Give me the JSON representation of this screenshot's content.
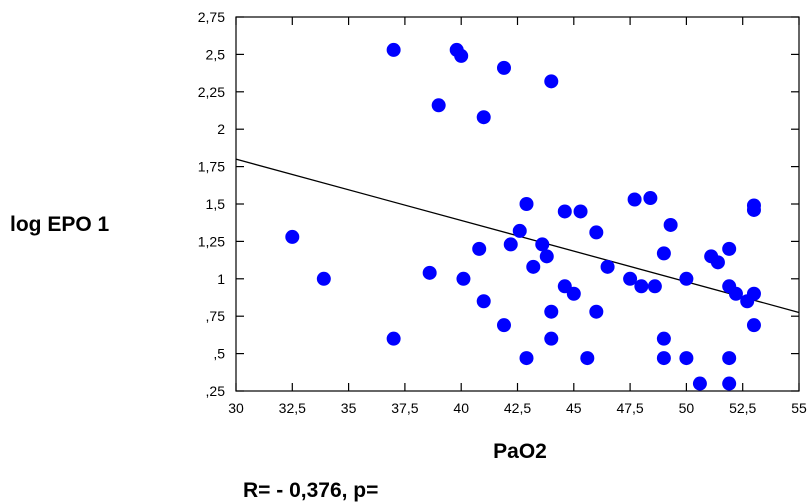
{
  "chart_data": {
    "type": "scatter",
    "xlabel": "PaO2",
    "ylabel": "log EPO 1",
    "annotation": "R= - 0,376, p=",
    "xlim": [
      30,
      55
    ],
    "ylim": [
      0.25,
      2.75
    ],
    "x_ticks": [
      "30",
      "32,5",
      "35",
      "37,5",
      "40",
      "42,5",
      "45",
      "47,5",
      "50",
      "52,5",
      "55"
    ],
    "y_ticks": [
      ",25",
      ",5",
      ",75",
      "1",
      "1,25",
      "1,5",
      "1,75",
      "2",
      "2,25",
      "2,5",
      "2,75"
    ],
    "grid": false,
    "marker_color": "#0000ff",
    "trendline": {
      "x": [
        30,
        55
      ],
      "y": [
        1.8,
        0.775
      ]
    },
    "points": [
      [
        32.5,
        1.28
      ],
      [
        33.9,
        1.0
      ],
      [
        37.0,
        2.53
      ],
      [
        37.0,
        0.6
      ],
      [
        38.6,
        1.04
      ],
      [
        39.0,
        2.16
      ],
      [
        39.8,
        2.53
      ],
      [
        40.0,
        2.49
      ],
      [
        40.1,
        1.0
      ],
      [
        40.8,
        1.2
      ],
      [
        41.0,
        2.08
      ],
      [
        41.0,
        0.85
      ],
      [
        41.9,
        2.41
      ],
      [
        41.9,
        0.69
      ],
      [
        42.2,
        1.23
      ],
      [
        42.6,
        1.32
      ],
      [
        42.9,
        1.5
      ],
      [
        42.9,
        0.47
      ],
      [
        43.2,
        1.08
      ],
      [
        43.6,
        1.23
      ],
      [
        43.8,
        1.15
      ],
      [
        44.0,
        2.32
      ],
      [
        44.0,
        0.78
      ],
      [
        44.0,
        0.6
      ],
      [
        44.6,
        1.45
      ],
      [
        44.6,
        0.95
      ],
      [
        45.0,
        0.9
      ],
      [
        45.3,
        1.45
      ],
      [
        45.6,
        0.47
      ],
      [
        46.0,
        1.31
      ],
      [
        46.0,
        0.78
      ],
      [
        46.5,
        1.08
      ],
      [
        47.5,
        1.0
      ],
      [
        47.7,
        1.53
      ],
      [
        48.0,
        0.95
      ],
      [
        48.4,
        1.54
      ],
      [
        48.6,
        0.95
      ],
      [
        49.0,
        1.17
      ],
      [
        49.0,
        0.6
      ],
      [
        49.0,
        0.47
      ],
      [
        49.3,
        1.36
      ],
      [
        50.0,
        1.0
      ],
      [
        50.0,
        0.47
      ],
      [
        50.6,
        0.3
      ],
      [
        51.1,
        1.15
      ],
      [
        51.4,
        1.11
      ],
      [
        51.9,
        1.2
      ],
      [
        51.9,
        0.95
      ],
      [
        51.9,
        0.47
      ],
      [
        51.9,
        0.3
      ],
      [
        52.2,
        0.9
      ],
      [
        52.7,
        0.85
      ],
      [
        53.0,
        1.49
      ],
      [
        53.0,
        1.46
      ],
      [
        53.0,
        0.9
      ],
      [
        53.0,
        0.69
      ]
    ]
  }
}
